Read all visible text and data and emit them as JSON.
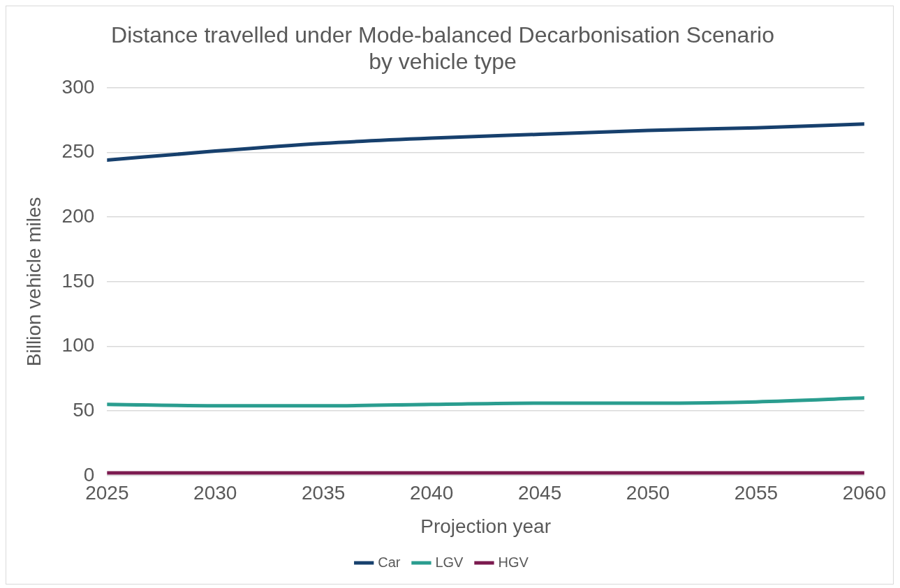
{
  "chart_data": {
    "type": "line",
    "title": "Distance travelled under Mode-balanced Decarbonisation Scenario by vehicle type",
    "xlabel": "Projection year",
    "ylabel": "Billion vehicle miles",
    "x": [
      2025,
      2030,
      2035,
      2040,
      2045,
      2050,
      2055,
      2060
    ],
    "series": [
      {
        "name": "Car",
        "color": "#17406d",
        "values": [
          244,
          251,
          257,
          261,
          264,
          267,
          269,
          272
        ]
      },
      {
        "name": "LGV",
        "color": "#2a9d8f",
        "values": [
          55,
          54,
          54,
          55,
          56,
          56,
          57,
          60
        ]
      },
      {
        "name": "HGV",
        "color": "#7b1a4f",
        "values": [
          2,
          2,
          2,
          2,
          2,
          2,
          2,
          2
        ]
      }
    ],
    "xlim": [
      2025,
      2060
    ],
    "xticks": [
      2025,
      2030,
      2035,
      2040,
      2045,
      2050,
      2055,
      2060
    ],
    "ylim": [
      0,
      300
    ],
    "yticks": [
      0,
      50,
      100,
      150,
      200,
      250,
      300
    ],
    "grid": "y",
    "legend": "bottom",
    "marker": "none",
    "line_style": "solid"
  }
}
